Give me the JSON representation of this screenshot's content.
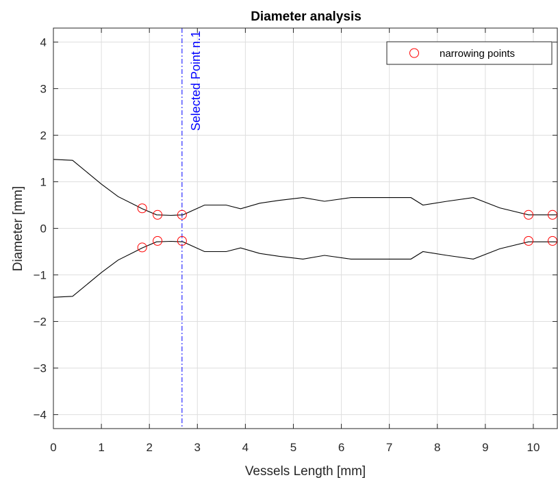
{
  "chart_data": {
    "type": "line",
    "title": "Diameter analysis",
    "xlabel": "Vessels Length [mm]",
    "ylabel": "Diameter [mm]",
    "xlim": [
      0,
      10.5
    ],
    "ylim": [
      -4.3,
      4.3
    ],
    "xticks": [
      0,
      1,
      2,
      3,
      4,
      5,
      6,
      7,
      8,
      9,
      10
    ],
    "yticks": [
      -4,
      -3,
      -2,
      -1,
      0,
      1,
      2,
      3,
      4
    ],
    "grid": true,
    "legend_position": "top-right",
    "series": [
      {
        "role": "upper-profile",
        "color": "#000000",
        "x": [
          0,
          0.4,
          1.0,
          1.35,
          1.7,
          1.85,
          2.15,
          2.45,
          2.7,
          3.15,
          3.6,
          3.9,
          4.3,
          4.7,
          5.2,
          5.65,
          6.2,
          6.7,
          7.45,
          7.7,
          8.2,
          8.75,
          9.3,
          9.9,
          10.4,
          10.5
        ],
        "values": [
          1.48,
          1.46,
          0.95,
          0.68,
          0.5,
          0.42,
          0.29,
          0.28,
          0.29,
          0.5,
          0.5,
          0.42,
          0.54,
          0.6,
          0.66,
          0.58,
          0.66,
          0.66,
          0.66,
          0.5,
          0.58,
          0.66,
          0.44,
          0.29,
          0.29,
          0.29
        ]
      },
      {
        "role": "lower-profile",
        "color": "#000000",
        "x": [
          0,
          0.4,
          1.0,
          1.35,
          1.7,
          1.85,
          2.15,
          2.45,
          2.7,
          3.15,
          3.6,
          3.9,
          4.3,
          4.7,
          5.2,
          5.65,
          6.2,
          6.7,
          7.45,
          7.7,
          8.2,
          8.75,
          9.3,
          9.9,
          10.4,
          10.5
        ],
        "values": [
          -1.48,
          -1.46,
          -0.95,
          -0.68,
          -0.5,
          -0.42,
          -0.29,
          -0.28,
          -0.29,
          -0.5,
          -0.5,
          -0.42,
          -0.54,
          -0.6,
          -0.66,
          -0.58,
          -0.66,
          -0.66,
          -0.66,
          -0.5,
          -0.58,
          -0.66,
          -0.44,
          -0.29,
          -0.29,
          -0.29
        ]
      }
    ],
    "markers": {
      "name": "narrowing points",
      "color": "#ff0000",
      "points": [
        {
          "x": 1.85,
          "y": 0.43
        },
        {
          "x": 2.17,
          "y": 0.29
        },
        {
          "x": 2.68,
          "y": 0.29
        },
        {
          "x": 9.9,
          "y": 0.29
        },
        {
          "x": 10.4,
          "y": 0.29
        },
        {
          "x": 1.85,
          "y": -0.41
        },
        {
          "x": 2.17,
          "y": -0.27
        },
        {
          "x": 2.68,
          "y": -0.27
        },
        {
          "x": 9.9,
          "y": -0.27
        },
        {
          "x": 10.4,
          "y": -0.27
        }
      ]
    },
    "vertical_line": {
      "x": 2.68,
      "label": "Selected Point n.1",
      "color": "#0000ff"
    }
  }
}
